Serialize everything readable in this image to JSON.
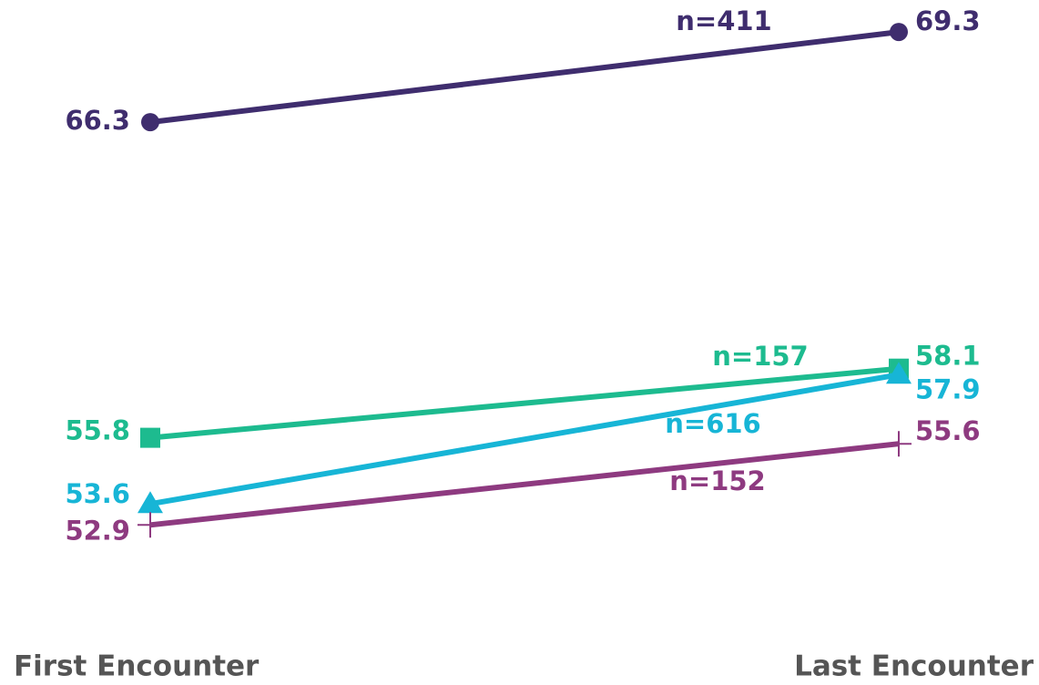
{
  "chart_data": {
    "type": "line",
    "categories": [
      "First Encounter",
      "Last Encounter"
    ],
    "series": [
      {
        "name": "n=411",
        "color": "#3f2d6e",
        "marker": "circle",
        "values": [
          66.3,
          69.3
        ]
      },
      {
        "name": "n=157",
        "color": "#1dbb8f",
        "marker": "square",
        "values": [
          55.8,
          58.1
        ]
      },
      {
        "name": "n=616",
        "color": "#17b5d6",
        "marker": "triangle",
        "values": [
          53.6,
          57.9
        ]
      },
      {
        "name": "n=152",
        "color": "#8e3a80",
        "marker": "plus",
        "values": [
          52.9,
          55.6
        ]
      }
    ],
    "ylim": [
      50,
      70
    ]
  }
}
